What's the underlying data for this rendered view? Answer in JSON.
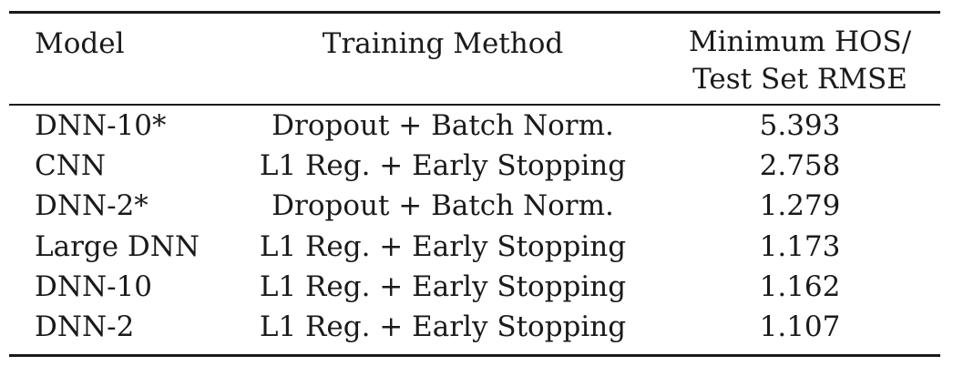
{
  "table": {
    "headers": {
      "model": "Model",
      "method": "Training Method",
      "rmse_line1": "Minimum HOS/",
      "rmse_line2": "Test Set RMSE"
    },
    "rows": [
      {
        "model": "DNN-10*",
        "method": "Dropout + Batch Norm.",
        "rmse": "5.393"
      },
      {
        "model": "CNN",
        "method": "L1 Reg. + Early Stopping",
        "rmse": "2.758"
      },
      {
        "model": "DNN-2*",
        "method": "Dropout + Batch Norm.",
        "rmse": "1.279"
      },
      {
        "model": "Large DNN",
        "method": "L1 Reg. + Early Stopping",
        "rmse": "1.173"
      },
      {
        "model": "DNN-10",
        "method": "L1 Reg. + Early Stopping",
        "rmse": "1.162"
      },
      {
        "model": "DNN-2",
        "method": "L1 Reg. + Early Stopping",
        "rmse": "1.107"
      }
    ]
  }
}
